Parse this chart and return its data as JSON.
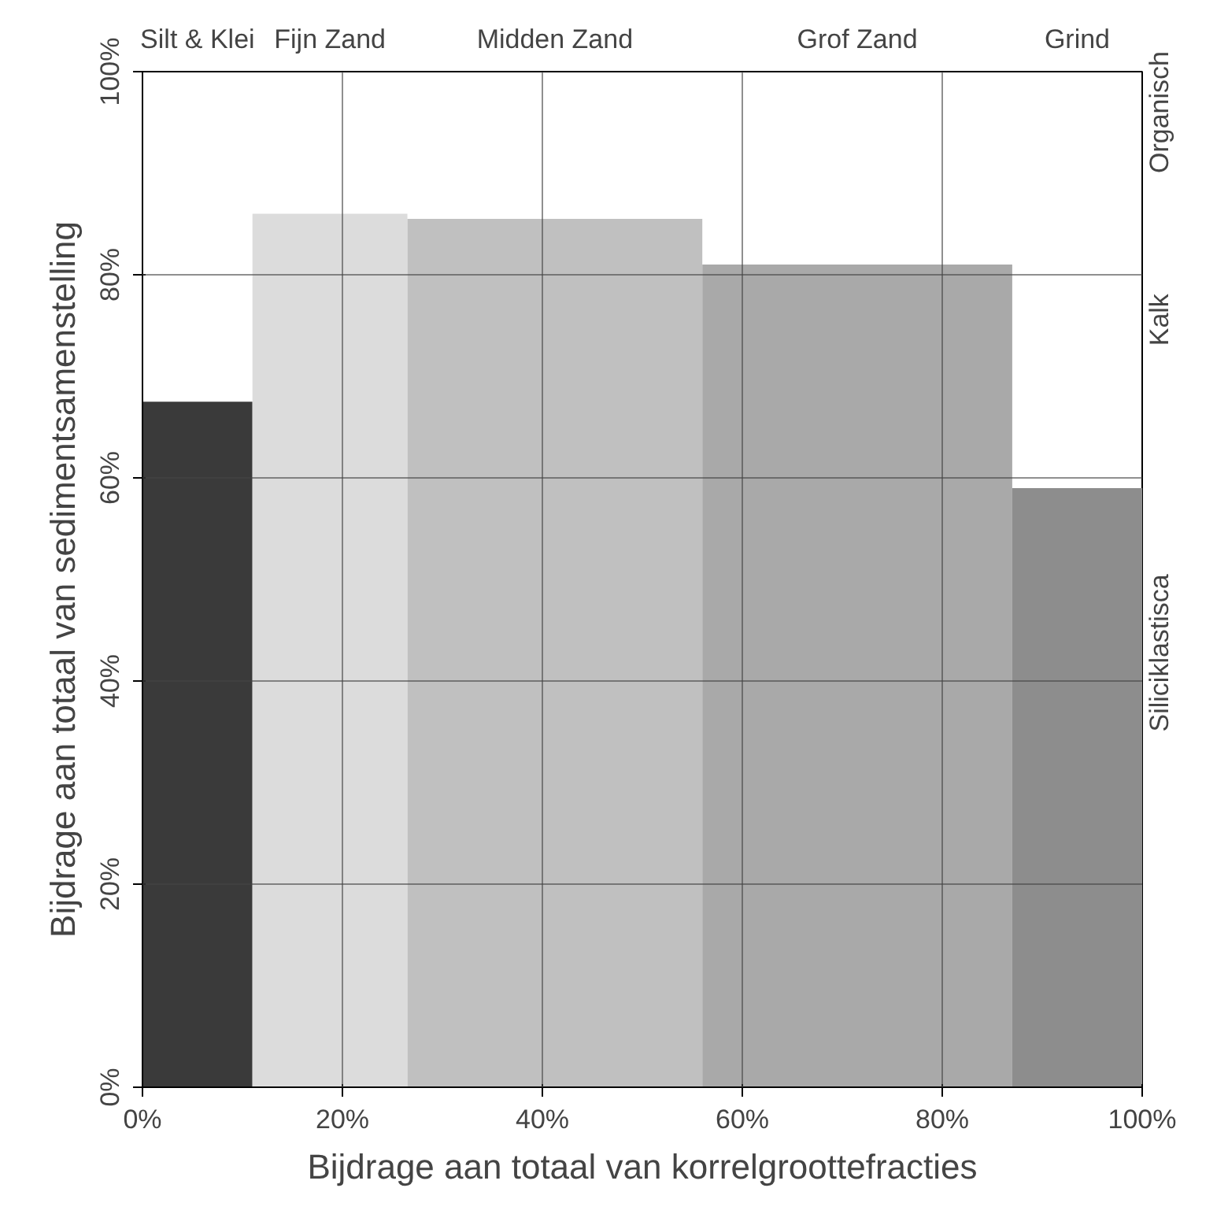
{
  "chart_data": {
    "type": "histogram",
    "xlabel": "Bijdrage aan totaal van korrelgroottefracties",
    "ylabel": "Bijdrage aan totaal van sedimentsamenstelling",
    "bins": [
      0,
      11,
      26.5,
      56,
      87,
      100
    ],
    "values": [
      67.5,
      86,
      85.5,
      81,
      59
    ],
    "colors": [
      "#3a3a3a",
      "#dcdcdc",
      "#c0c0c0",
      "#a9a9a9",
      "#8d8d8d"
    ],
    "xlim": [
      0,
      100
    ],
    "ylim": [
      0,
      100
    ],
    "xticks": [
      {
        "value": 0,
        "label": "0%"
      },
      {
        "value": 20,
        "label": "20%"
      },
      {
        "value": 40,
        "label": "40%"
      },
      {
        "value": 60,
        "label": "60%"
      },
      {
        "value": 80,
        "label": "80%"
      },
      {
        "value": 100,
        "label": "100%"
      }
    ],
    "yticks": [
      {
        "value": 0,
        "label": "0%"
      },
      {
        "value": 20,
        "label": "20%"
      },
      {
        "value": 40,
        "label": "40%"
      },
      {
        "value": 60,
        "label": "60%"
      },
      {
        "value": 80,
        "label": "80%"
      },
      {
        "value": 100,
        "label": "100%"
      }
    ],
    "annotations": [
      "Silt & Klei",
      "Fijn Zand",
      "Midden Zand",
      "Grof Zand",
      "Grind",
      "Organisch",
      "Kalk",
      "Siliciklastisca"
    ],
    "grid": true
  }
}
